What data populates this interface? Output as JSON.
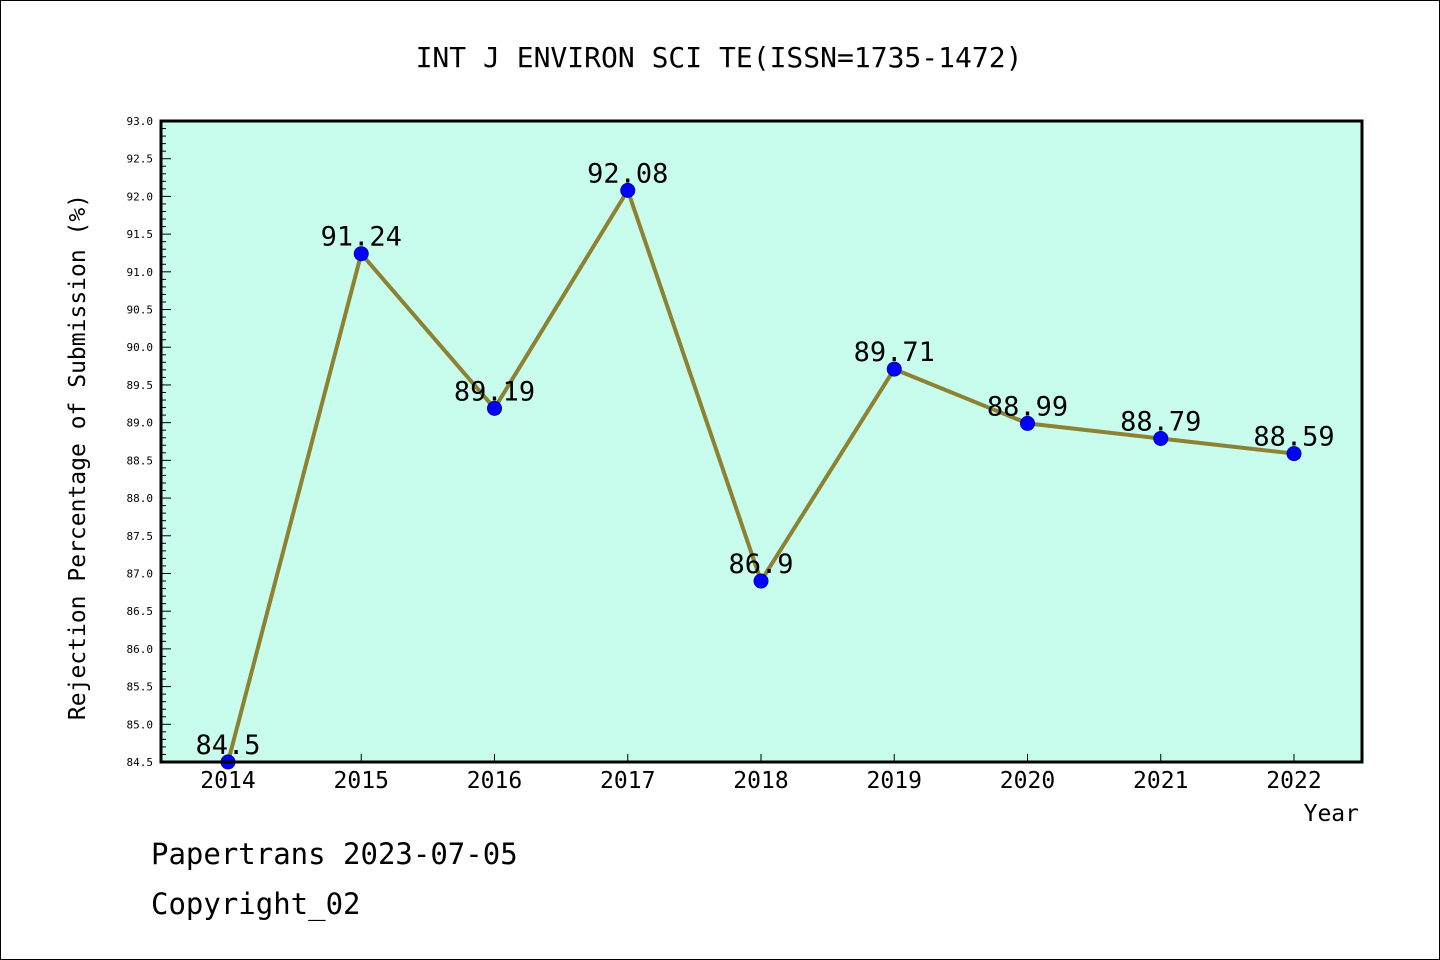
{
  "chart_data": {
    "type": "line",
    "title": "INT J ENVIRON SCI TE(ISSN=1735-1472)",
    "xlabel": "Year",
    "ylabel": "Rejection Percentage of Submission (%)",
    "categories": [
      "2014",
      "2015",
      "2016",
      "2017",
      "2018",
      "2019",
      "2020",
      "2021",
      "2022"
    ],
    "series": [
      {
        "values": [
          84.5,
          91.24,
          89.19,
          92.08,
          86.9,
          89.71,
          88.99,
          88.79,
          88.59
        ]
      }
    ],
    "data_labels": [
      "84.5",
      "91.24",
      "89.19",
      "92.08",
      "86.9",
      "89.71",
      "88.99",
      "88.79",
      "88.59"
    ],
    "ylim": [
      84.5,
      93.0
    ],
    "yticks": [
      "84.5",
      "85.0",
      "85.5",
      "86.0",
      "86.5",
      "87.0",
      "87.5",
      "88.0",
      "88.5",
      "89.0",
      "89.5",
      "90.0",
      "90.5",
      "91.0",
      "91.5",
      "92.0",
      "92.5",
      "93.0"
    ],
    "grid": false,
    "colors": {
      "plot_background": "#c8fcec",
      "line": "#8c8232",
      "marker": "#0000ff"
    }
  },
  "footer": {
    "line1": "Papertrans 2023-07-05",
    "line2": "Copyright_02"
  }
}
